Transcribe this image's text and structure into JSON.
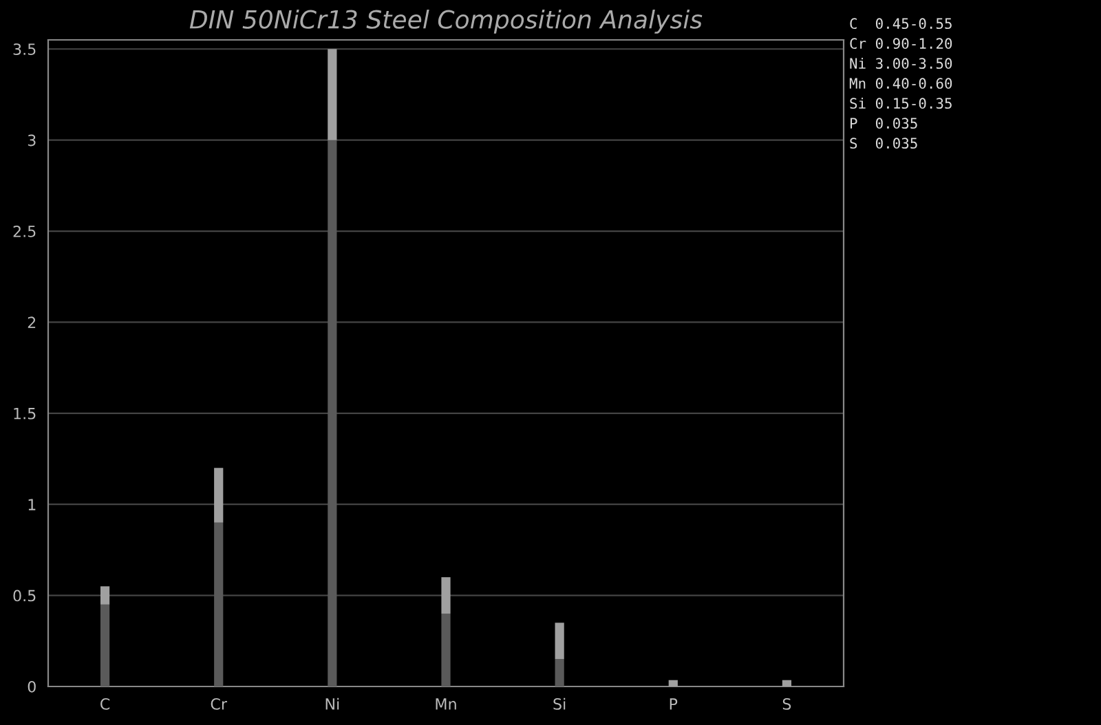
{
  "chart_data": {
    "type": "bar",
    "title": "DIN 50NiCr13 Steel Composition Analysis",
    "categories": [
      "C",
      "Cr",
      "Ni",
      "Mn",
      "Si",
      "P",
      "S"
    ],
    "stacked": true,
    "series": [
      {
        "color": "#5a5a5a",
        "values": [
          0.45,
          0.9,
          3.0,
          0.4,
          0.15,
          null,
          null
        ]
      },
      {
        "color": "#a0a0a0",
        "values": [
          0.1,
          0.3,
          0.5,
          0.2,
          0.2,
          0.035,
          0.035
        ]
      }
    ],
    "ylim": [
      0,
      3.55
    ],
    "yticks": [
      0,
      0.5,
      1,
      1.5,
      2,
      2.5,
      3,
      3.5
    ],
    "grid": "y",
    "annotations": [
      "C  0.45-0.55",
      "Cr 0.90-1.20",
      "Ni 3.00-3.50",
      "Mn 0.40-0.60",
      "Si 0.15-0.35",
      "P  0.035",
      "S  0.035"
    ]
  }
}
